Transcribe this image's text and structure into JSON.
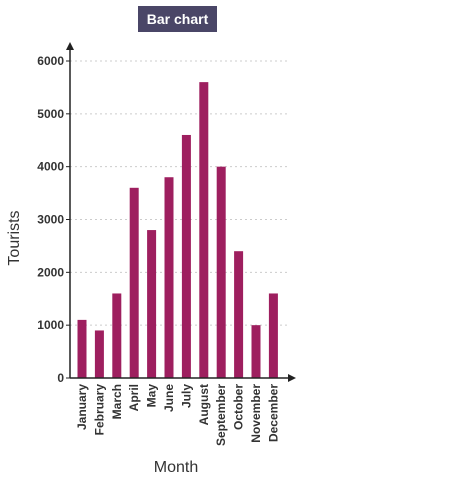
{
  "chart_data": {
    "type": "bar",
    "title": "Bar chart",
    "xlabel": "Month",
    "ylabel": "Tourists",
    "categories": [
      "January",
      "February",
      "March",
      "April",
      "May",
      "June",
      "July",
      "August",
      "September",
      "October",
      "November",
      "December"
    ],
    "values": [
      1100,
      900,
      1600,
      3600,
      2800,
      3800,
      4600,
      5600,
      4000,
      2400,
      1000,
      1600
    ],
    "ylim": [
      0,
      6000
    ],
    "yticks": [
      0,
      1000,
      2000,
      3000,
      4000,
      5000,
      6000
    ],
    "grid": true,
    "colors": {
      "bar": "#9e1f5f",
      "title_bg": "#4a4667",
      "axis": "#222222",
      "grid": "#cccccc"
    }
  }
}
